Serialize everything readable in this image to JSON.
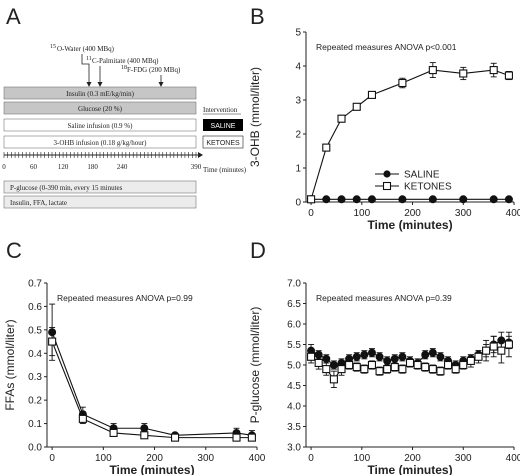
{
  "panels": {
    "A": {
      "letter": "A",
      "tracers": {
        "water": {
          "super": "15",
          "text": "O-Water (400 MBq)"
        },
        "palmitate": {
          "super": "11",
          "text": "C-Palmitate (400 MBq)"
        },
        "fdg": {
          "super": "18",
          "text": "F-FDG (200 MBq)"
        }
      },
      "bars": {
        "insulin": "Insulin (0.3 mE/kg/min)",
        "glucose": "Glucose (20 %)",
        "saline": "Saline infusion (0.9 %)",
        "ohb": "3-OHB infusion (0.18 g/kg/hour)",
        "pglucose": "P-glucose (0-390 min, every 15 minutes",
        "ffa": "Insulin, FFA, lactate"
      },
      "intervention": {
        "title": "Intervention",
        "saline": "SALINE",
        "ketones": "KETONES"
      },
      "time_ticks": [
        "0",
        "60",
        "120",
        "180",
        "240",
        "390"
      ],
      "time_label": "Time (minutes)"
    },
    "B": {
      "letter": "B"
    },
    "C": {
      "letter": "C"
    },
    "D": {
      "letter": "D"
    }
  },
  "chart_data": [
    {
      "panel": "B",
      "type": "line",
      "xlabel": "Time (minutes)",
      "ylabel": "3-OHB (mmol/liter)",
      "xlim": [
        -10,
        400
      ],
      "ylim": [
        0,
        5
      ],
      "xticks": [
        0,
        100,
        200,
        300,
        400
      ],
      "yticks": [
        0,
        1,
        2,
        3,
        4,
        5
      ],
      "annotation": "Repeated measures ANOVA p<0.001",
      "legend_position": "lower-right",
      "series": [
        {
          "name": "SALINE",
          "marker": "filled-circle",
          "x": [
            0,
            30,
            60,
            90,
            120,
            180,
            240,
            300,
            360,
            390
          ],
          "y": [
            0.08,
            0.08,
            0.08,
            0.08,
            0.08,
            0.08,
            0.08,
            0.08,
            0.08,
            0.08
          ],
          "err": [
            0.02,
            0.02,
            0.02,
            0.02,
            0.02,
            0.02,
            0.02,
            0.02,
            0.02,
            0.02
          ]
        },
        {
          "name": "KETONES",
          "marker": "open-square",
          "x": [
            0,
            30,
            60,
            90,
            120,
            180,
            240,
            300,
            360,
            390
          ],
          "y": [
            0.08,
            1.6,
            2.45,
            2.8,
            3.15,
            3.5,
            3.88,
            3.78,
            3.88,
            3.72
          ],
          "err": [
            0.02,
            0.05,
            0.1,
            0.08,
            0.08,
            0.14,
            0.22,
            0.18,
            0.2,
            0.12
          ]
        }
      ]
    },
    {
      "panel": "C",
      "type": "line",
      "xlabel": "Time (minutes)",
      "ylabel": "FFAs (mmol/liter)",
      "xlim": [
        -10,
        400
      ],
      "ylim": [
        0,
        0.7
      ],
      "xticks": [
        0,
        100,
        200,
        300,
        400
      ],
      "yticks": [
        0,
        0.1,
        0.2,
        0.3,
        0.4,
        0.5,
        0.6,
        0.7
      ],
      "annotation": "Repeated measures ANOVA p=0.99",
      "series": [
        {
          "name": "SALINE",
          "marker": "filled-circle",
          "x": [
            0,
            60,
            120,
            180,
            240,
            360,
            390
          ],
          "y": [
            0.49,
            0.14,
            0.08,
            0.08,
            0.05,
            0.06,
            0.05
          ],
          "err": [
            0.12,
            0.03,
            0.02,
            0.02,
            0.01,
            0.02,
            0.02
          ]
        },
        {
          "name": "KETONES",
          "marker": "open-square",
          "x": [
            0,
            60,
            120,
            180,
            240,
            360,
            390
          ],
          "y": [
            0.45,
            0.12,
            0.06,
            0.05,
            0.04,
            0.04,
            0.04
          ],
          "err": [
            0.06,
            0.02,
            0.01,
            0.01,
            0.01,
            0.01,
            0.01
          ]
        }
      ]
    },
    {
      "panel": "D",
      "type": "line",
      "xlabel": "Time (minutes)",
      "ylabel": "P-glucose (mmol/liter)",
      "xlim": [
        -10,
        400
      ],
      "ylim": [
        3.0,
        7.0
      ],
      "xticks": [
        0,
        100,
        200,
        300,
        400
      ],
      "yticks": [
        3.0,
        3.5,
        4.0,
        4.5,
        5.0,
        5.5,
        6.0,
        6.5,
        7.0
      ],
      "annotation": "Repeated measures ANOVA p=0.39",
      "series": [
        {
          "name": "SALINE",
          "marker": "filled-circle",
          "x": [
            0,
            15,
            30,
            45,
            60,
            75,
            90,
            105,
            120,
            135,
            150,
            165,
            180,
            195,
            210,
            225,
            240,
            255,
            270,
            285,
            300,
            315,
            330,
            345,
            360,
            375,
            390
          ],
          "y": [
            5.35,
            5.25,
            5.15,
            5.0,
            5.05,
            5.15,
            5.2,
            5.25,
            5.3,
            5.2,
            5.1,
            5.15,
            5.2,
            5.1,
            5.05,
            5.25,
            5.3,
            5.2,
            5.1,
            5.0,
            5.1,
            5.15,
            5.25,
            5.35,
            5.5,
            5.6,
            5.55
          ],
          "err": [
            0.15,
            0.1,
            0.1,
            0.1,
            0.1,
            0.1,
            0.1,
            0.1,
            0.1,
            0.1,
            0.1,
            0.1,
            0.1,
            0.1,
            0.1,
            0.1,
            0.1,
            0.1,
            0.1,
            0.1,
            0.1,
            0.1,
            0.1,
            0.15,
            0.2,
            0.2,
            0.15
          ]
        },
        {
          "name": "KETONES",
          "marker": "open-square",
          "x": [
            0,
            15,
            30,
            45,
            60,
            75,
            90,
            105,
            120,
            135,
            150,
            165,
            180,
            195,
            210,
            225,
            240,
            255,
            270,
            285,
            300,
            315,
            330,
            345,
            360,
            375,
            390
          ],
          "y": [
            5.2,
            5.05,
            4.9,
            4.65,
            4.9,
            5.0,
            4.95,
            4.9,
            5.0,
            4.85,
            4.9,
            4.95,
            4.9,
            5.05,
            5.0,
            4.95,
            4.9,
            4.85,
            5.0,
            4.9,
            5.0,
            5.1,
            5.2,
            5.35,
            5.45,
            5.35,
            5.5
          ],
          "err": [
            0.15,
            0.15,
            0.15,
            0.2,
            0.15,
            0.1,
            0.1,
            0.1,
            0.1,
            0.1,
            0.1,
            0.1,
            0.1,
            0.1,
            0.1,
            0.1,
            0.1,
            0.1,
            0.1,
            0.1,
            0.1,
            0.15,
            0.15,
            0.25,
            0.25,
            0.3,
            0.3
          ]
        }
      ]
    }
  ]
}
